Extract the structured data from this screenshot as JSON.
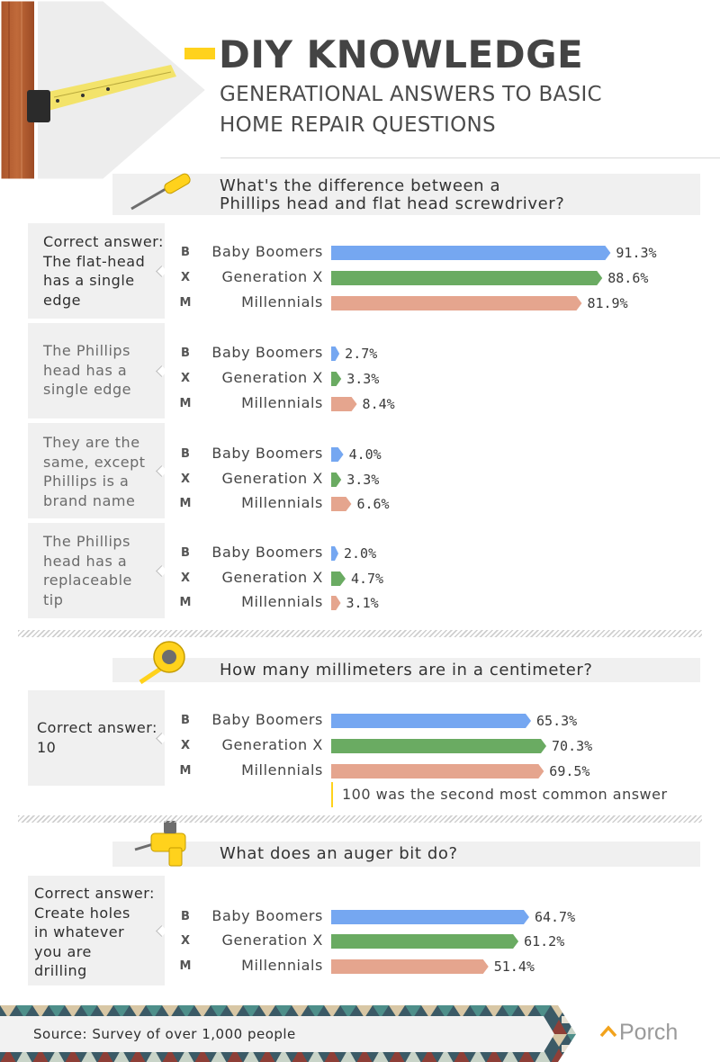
{
  "header": {
    "title": "DIY KNOWLEDGE",
    "subtitle_line1": "GENERATIONAL ANSWERS TO BASIC",
    "subtitle_line2": "HOME REPAIR QUESTIONS"
  },
  "colors": {
    "accent": "#ffd21c",
    "baby_boomers": "#75a7f1",
    "generation_x": "#6aab62",
    "millennials": "#e5a58e",
    "panel": "#f0f0f0"
  },
  "questions": [
    {
      "icon": "screwdriver-icon",
      "question_line1": "What's the difference between a",
      "question_line2": "Phillips head and flat head screwdriver?"
    },
    {
      "icon": "tape-measure-icon",
      "question_line1": "How many millimeters are in a centimeter?"
    },
    {
      "icon": "drill-icon",
      "question_line1": "What does an auger bit do?"
    }
  ],
  "note": "100 was the second most common answer",
  "footer": {
    "source": "Source: Survey of over 1,000 people",
    "brand": "Porch"
  },
  "chart_data": {
    "type": "bar",
    "orientation": "horizontal",
    "series_names": [
      "Baby Boomers",
      "Generation X",
      "Millennials"
    ],
    "series_badges": [
      "B",
      "X",
      "M"
    ],
    "value_suffix": "%",
    "groups": [
      {
        "answer": "Correct answer: The flat-head has a single edge",
        "answer_lines": [
          "Correct answer:",
          "The flat-head",
          "has a single",
          "edge"
        ],
        "correct": true,
        "values": [
          91.3,
          88.6,
          81.9
        ],
        "labels": [
          "91.3%",
          "88.6%",
          "81.9%"
        ]
      },
      {
        "answer": "The Phillips head has a single edge",
        "answer_lines": [
          "The Phillips",
          "head has a",
          "single edge"
        ],
        "correct": false,
        "values": [
          2.7,
          3.3,
          8.4
        ],
        "labels": [
          "2.7%",
          "3.3%",
          "8.4%"
        ]
      },
      {
        "answer": "They are the same, except Phillips is a brand name",
        "answer_lines": [
          "They are the",
          "same, except",
          "Phillips is a",
          "brand name"
        ],
        "correct": false,
        "values": [
          4.0,
          3.3,
          6.6
        ],
        "labels": [
          "4.0%",
          "3.3%",
          "6.6%"
        ]
      },
      {
        "answer": "The Phillips head has a replaceable tip",
        "answer_lines": [
          "The Phillips",
          "head has a",
          "replaceable",
          "tip"
        ],
        "correct": false,
        "values": [
          2.0,
          4.7,
          3.1
        ],
        "labels": [
          "2.0%",
          "4.7%",
          "3.1%"
        ]
      },
      {
        "answer": "Correct answer: 10",
        "answer_lines": [
          "Correct answer:",
          "10"
        ],
        "correct": true,
        "values": [
          65.3,
          70.3,
          69.5
        ],
        "labels": [
          "65.3%",
          "70.3%",
          "69.5%"
        ]
      },
      {
        "answer": "Correct answer: Create holes in whatever you are drilling",
        "answer_lines": [
          "Correct answer:",
          "Create holes",
          "in whatever",
          "you are",
          "drilling"
        ],
        "correct": true,
        "values": [
          64.7,
          61.2,
          51.4
        ],
        "labels": [
          "64.7%",
          "61.2%",
          "51.4%"
        ]
      }
    ]
  }
}
